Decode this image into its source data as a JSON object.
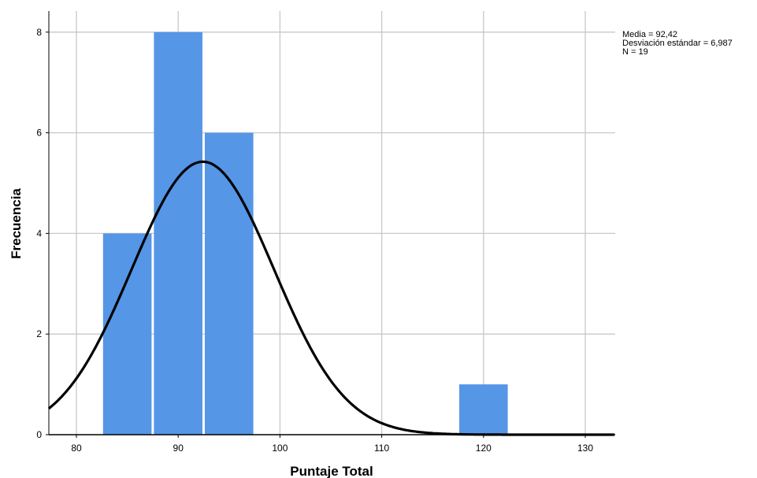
{
  "chart_data": {
    "type": "bar",
    "subtype": "histogram-with-normal-curve",
    "xlabel": "Puntaje Total",
    "ylabel": "Frecuencia",
    "xlim": [
      77.3,
      133
    ],
    "ylim": [
      0,
      8.4
    ],
    "x_ticks": [
      80,
      90,
      100,
      110,
      120,
      130
    ],
    "y_ticks": [
      0,
      2,
      4,
      6,
      8
    ],
    "grid": true,
    "bins": [
      {
        "start": 82.5,
        "end": 87.5,
        "count": 4
      },
      {
        "start": 87.5,
        "end": 92.5,
        "count": 8
      },
      {
        "start": 92.5,
        "end": 97.5,
        "count": 6
      },
      {
        "start": 117.5,
        "end": 122.5,
        "count": 1
      }
    ],
    "normal_curve": {
      "mean": 92.42,
      "sd": 6.987,
      "n": 19,
      "bin_width": 5
    },
    "colors": {
      "bar": "#5596e6",
      "curve": "#000000",
      "grid": "#c8c8c8",
      "axis": "#000000"
    }
  },
  "stats": {
    "media": "Media = 92,42",
    "desviacion": "Desviación estándar = 6,987",
    "n": "N = 19"
  }
}
